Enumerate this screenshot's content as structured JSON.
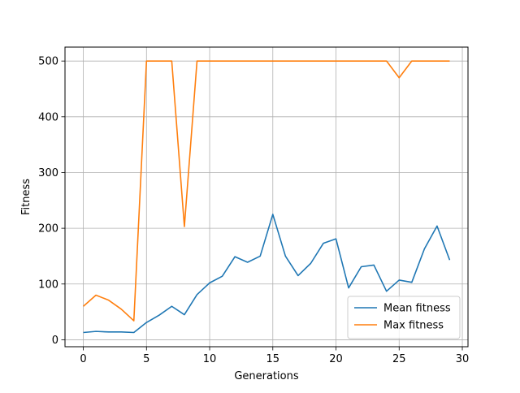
{
  "chart_data": {
    "type": "line",
    "title": "",
    "xlabel": "Generations",
    "ylabel": "Fitness",
    "xlim": [
      -1.45,
      30.45
    ],
    "ylim": [
      -12.5,
      525
    ],
    "x_ticks": [
      0,
      5,
      10,
      15,
      20,
      25,
      30
    ],
    "y_ticks": [
      0,
      100,
      200,
      300,
      400,
      500
    ],
    "grid": true,
    "legend_position": "lower-right",
    "x": [
      0,
      1,
      2,
      3,
      4,
      5,
      6,
      7,
      8,
      9,
      10,
      11,
      12,
      13,
      14,
      15,
      16,
      17,
      18,
      19,
      20,
      21,
      22,
      23,
      24,
      25,
      26,
      27,
      28,
      29
    ],
    "series": [
      {
        "name": "Mean fitness",
        "color": "#1f77b4",
        "values": [
          13,
          15,
          14,
          14,
          13,
          31,
          44,
          60,
          45,
          81,
          102,
          114,
          149,
          139,
          150,
          225,
          150,
          115,
          137,
          173,
          181,
          93,
          131,
          134,
          87,
          107,
          103,
          163,
          204,
          143
        ]
      },
      {
        "name": "Max fitness",
        "color": "#ff7f0e",
        "values": [
          60,
          80,
          71,
          55,
          34,
          500,
          500,
          500,
          203,
          500,
          500,
          500,
          500,
          500,
          500,
          500,
          500,
          500,
          500,
          500,
          500,
          500,
          500,
          500,
          500,
          470,
          500,
          500,
          500,
          500
        ]
      }
    ]
  }
}
